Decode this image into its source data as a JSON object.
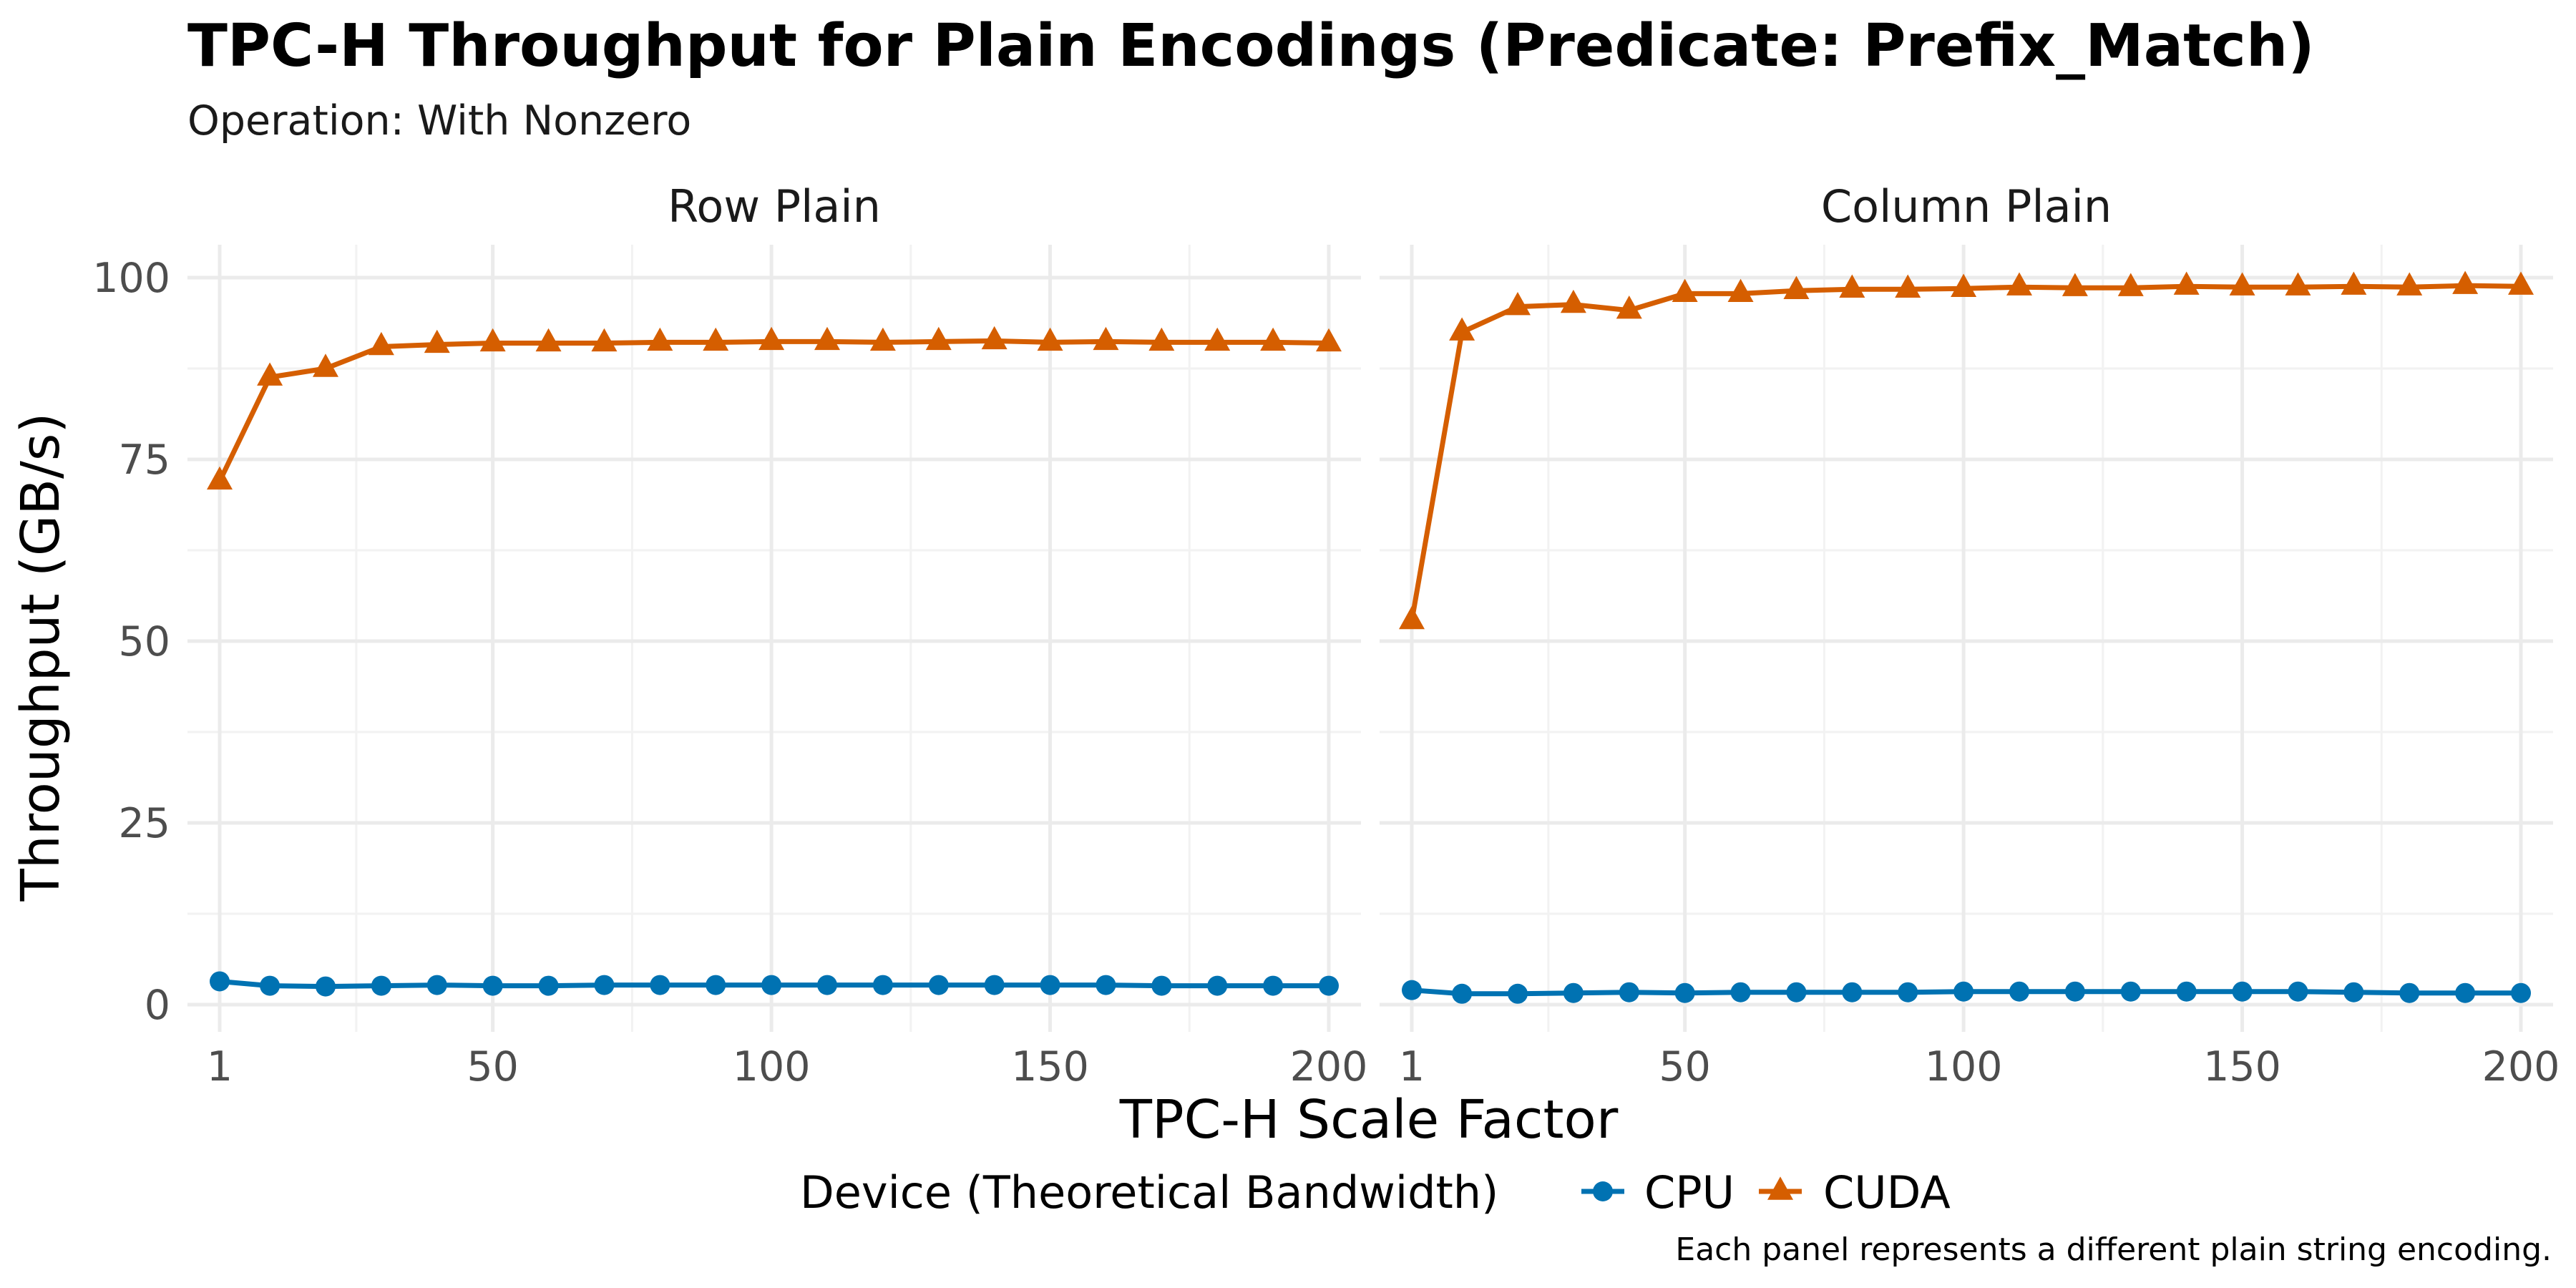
{
  "title": "TPC-H Throughput for Plain Encodings (Predicate: Prefix_Match)",
  "subtitle": "Operation: With Nonzero",
  "caption": "Each panel represents a different plain string encoding.",
  "legend": {
    "title": "Device (Theoretical Bandwidth)",
    "position": "bottom",
    "items": [
      {
        "label": "CPU",
        "color": "#0072b2",
        "shape": "circle"
      },
      {
        "label": "CUDA",
        "color": "#d55e00",
        "shape": "triangle"
      }
    ]
  },
  "chart_data": {
    "type": "line",
    "xlabel": "TPC-H Scale Factor",
    "ylabel": "Throughput (GB/s)",
    "xlim": [
      1,
      200
    ],
    "ylim": [
      0,
      100
    ],
    "x_ticks": [
      1,
      50,
      100,
      150,
      200
    ],
    "y_ticks": [
      0,
      25,
      50,
      75,
      100
    ],
    "grid": true,
    "panels": [
      {
        "name": "Row Plain",
        "x": [
          1,
          10,
          20,
          30,
          40,
          50,
          60,
          70,
          80,
          90,
          100,
          110,
          120,
          130,
          140,
          150,
          160,
          170,
          180,
          190,
          200
        ],
        "series": [
          {
            "name": "CPU",
            "color": "#0072b2",
            "shape": "circle",
            "values": [
              3.2,
              2.6,
              2.5,
              2.6,
              2.7,
              2.6,
              2.6,
              2.7,
              2.7,
              2.7,
              2.7,
              2.7,
              2.7,
              2.7,
              2.7,
              2.7,
              2.7,
              2.6,
              2.6,
              2.6,
              2.6
            ]
          },
          {
            "name": "CUDA",
            "color": "#d55e00",
            "shape": "triangle",
            "values": [
              72.0,
              86.3,
              87.5,
              90.5,
              90.8,
              91.0,
              91.0,
              91.0,
              91.1,
              91.1,
              91.2,
              91.2,
              91.1,
              91.2,
              91.3,
              91.1,
              91.2,
              91.1,
              91.1,
              91.1,
              91.0
            ]
          }
        ]
      },
      {
        "name": "Column Plain",
        "x": [
          1,
          10,
          20,
          30,
          40,
          50,
          60,
          70,
          80,
          90,
          100,
          110,
          120,
          130,
          140,
          150,
          160,
          170,
          180,
          190,
          200
        ],
        "series": [
          {
            "name": "CPU",
            "color": "#0072b2",
            "shape": "circle",
            "values": [
              2.0,
              1.5,
              1.5,
              1.6,
              1.7,
              1.6,
              1.7,
              1.7,
              1.7,
              1.7,
              1.8,
              1.8,
              1.8,
              1.8,
              1.8,
              1.8,
              1.8,
              1.7,
              1.6,
              1.6,
              1.6
            ]
          },
          {
            "name": "CUDA",
            "color": "#d55e00",
            "shape": "triangle",
            "values": [
              52.8,
              92.5,
              96.0,
              96.3,
              95.5,
              97.8,
              97.8,
              98.2,
              98.4,
              98.4,
              98.5,
              98.7,
              98.6,
              98.6,
              98.8,
              98.7,
              98.7,
              98.8,
              98.7,
              98.9,
              98.8
            ]
          }
        ]
      }
    ]
  }
}
